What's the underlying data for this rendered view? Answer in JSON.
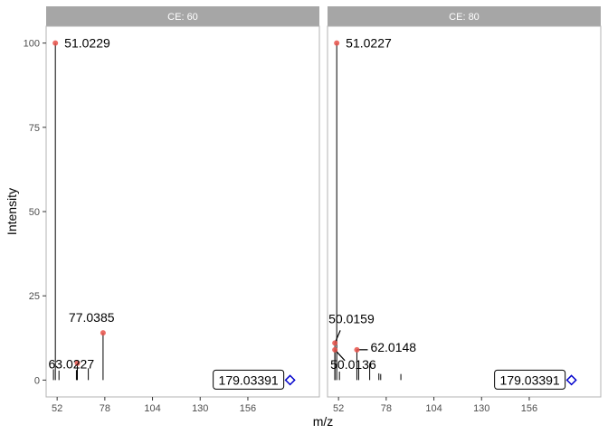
{
  "chart_data": {
    "type": "scatter",
    "xlabel": "m/z",
    "ylabel": "Intensity",
    "xlim": [
      46,
      195
    ],
    "ylim": [
      -5,
      105
    ],
    "x_ticks": [
      52,
      78,
      104,
      130,
      156
    ],
    "y_ticks": [
      0,
      25,
      50,
      75,
      100
    ],
    "grid": false,
    "colors": {
      "stick": "#000000",
      "point": "#e8524a",
      "precursor": "#0000cc",
      "strip": "#a6a6a6",
      "panel_border": "#b3b3b3"
    },
    "panels": [
      {
        "strip": "CE: 60",
        "sticks": [
          {
            "x": 50.0,
            "y": 3.2
          },
          {
            "x": 51.0229,
            "y": 100
          },
          {
            "x": 53.0,
            "y": 2.8
          },
          {
            "x": 62.5,
            "y": 3.0
          },
          {
            "x": 63.0227,
            "y": 5.0
          },
          {
            "x": 69.0,
            "y": 3.5
          },
          {
            "x": 77.0385,
            "y": 14.0
          }
        ],
        "labeled_points": [
          {
            "x": 51.0229,
            "y": 100,
            "label": "51.0229"
          },
          {
            "x": 63.0227,
            "y": 5.0,
            "label": "63.0227"
          },
          {
            "x": 77.0385,
            "y": 14.0,
            "label": "77.0385"
          }
        ],
        "precursor": {
          "x": 179.03391,
          "y": 0,
          "label": "179.03391"
        }
      },
      {
        "strip": "CE: 80",
        "sticks": [
          {
            "x": 50.0136,
            "y": 9.0
          },
          {
            "x": 50.0159,
            "y": 11.0
          },
          {
            "x": 51.0227,
            "y": 100
          },
          {
            "x": 52.5,
            "y": 2.5
          },
          {
            "x": 62.0148,
            "y": 9.0
          },
          {
            "x": 63.0,
            "y": 5.5
          },
          {
            "x": 69.0,
            "y": 5.0
          },
          {
            "x": 74.0,
            "y": 2.0
          },
          {
            "x": 75.0,
            "y": 1.8
          },
          {
            "x": 86.0,
            "y": 1.8
          }
        ],
        "labeled_points": [
          {
            "x": 51.0227,
            "y": 100,
            "label": "51.0227"
          },
          {
            "x": 50.0159,
            "y": 11.0,
            "label": "50.0159"
          },
          {
            "x": 62.0148,
            "y": 9.0,
            "label": "62.0148"
          },
          {
            "x": 50.0136,
            "y": 9.0,
            "label": "50.0136"
          }
        ],
        "precursor": {
          "x": 179.03391,
          "y": 0,
          "label": "179.03391"
        }
      }
    ]
  }
}
